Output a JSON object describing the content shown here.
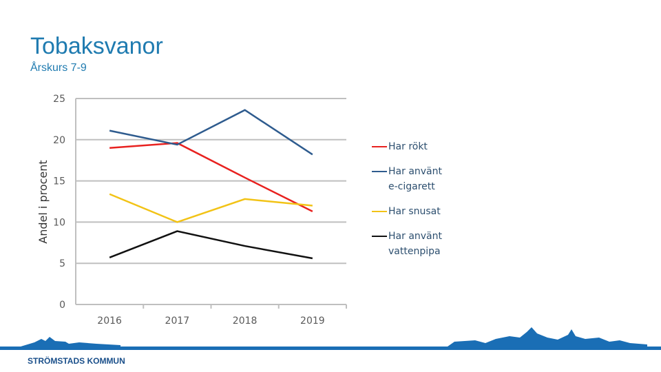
{
  "header": {
    "title": "Tobaksvanor",
    "subtitle": "Årskurs 7-9"
  },
  "chart_data": {
    "type": "line",
    "y_label": "Andel i procent",
    "categories": [
      "2016",
      "2017",
      "2018",
      "2019"
    ],
    "series": [
      {
        "name": "Har rökt",
        "color": "#e8211f",
        "values": [
          19.0,
          19.6,
          15.4,
          11.3
        ]
      },
      {
        "name": "Har använt e-cigarett",
        "color": "#2e5b8e",
        "values": [
          21.1,
          19.4,
          23.6,
          18.2
        ]
      },
      {
        "name": "Har snusat",
        "color": "#f2c316",
        "values": [
          13.4,
          10.0,
          12.8,
          12.0
        ]
      },
      {
        "name": "Har använt vattenpipa",
        "color": "#111111",
        "values": [
          5.7,
          8.9,
          7.1,
          5.6
        ]
      }
    ],
    "ylim": [
      0,
      25
    ],
    "yticks": [
      0,
      5,
      10,
      15,
      20,
      25
    ],
    "grid": true,
    "legend": "right"
  },
  "footer": {
    "logo_text": "STRÖMSTADS KOMMUN"
  }
}
